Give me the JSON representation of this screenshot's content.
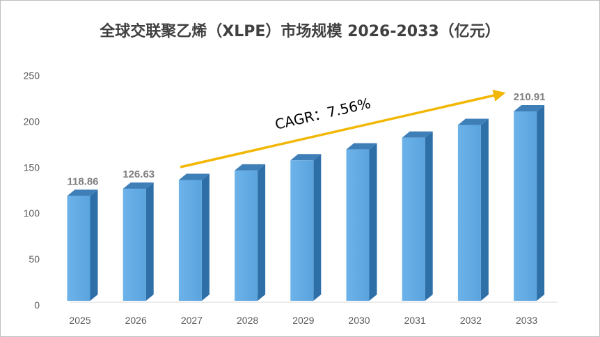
{
  "chart_data": {
    "type": "bar",
    "title": "全球交联聚乙烯（XLPE）市场规模 2026-2033（亿元）",
    "categories": [
      "2025",
      "2026",
      "2027",
      "2028",
      "2029",
      "2030",
      "2031",
      "2032",
      "2033"
    ],
    "values": [
      118.86,
      126.63,
      136.2,
      146.5,
      157.6,
      169.5,
      182.3,
      196.1,
      210.91
    ],
    "data_labels": {
      "2025": "118.86",
      "2026": "126.63",
      "2033": "210.91"
    },
    "ylim": [
      0,
      250
    ],
    "yticks": [
      0,
      50,
      100,
      150,
      200,
      250
    ],
    "grid": false,
    "legend": "none",
    "annotation": {
      "text": "CAGR：7.56%",
      "style": "arrow"
    },
    "colors": {
      "bar_front": "#5aa3de",
      "bar_side": "#2f6fa8",
      "bar_top": "#3f7fb8",
      "arrow": "#f2b705",
      "axis_text": "#595959",
      "label_text": "#7f7f7f"
    }
  }
}
